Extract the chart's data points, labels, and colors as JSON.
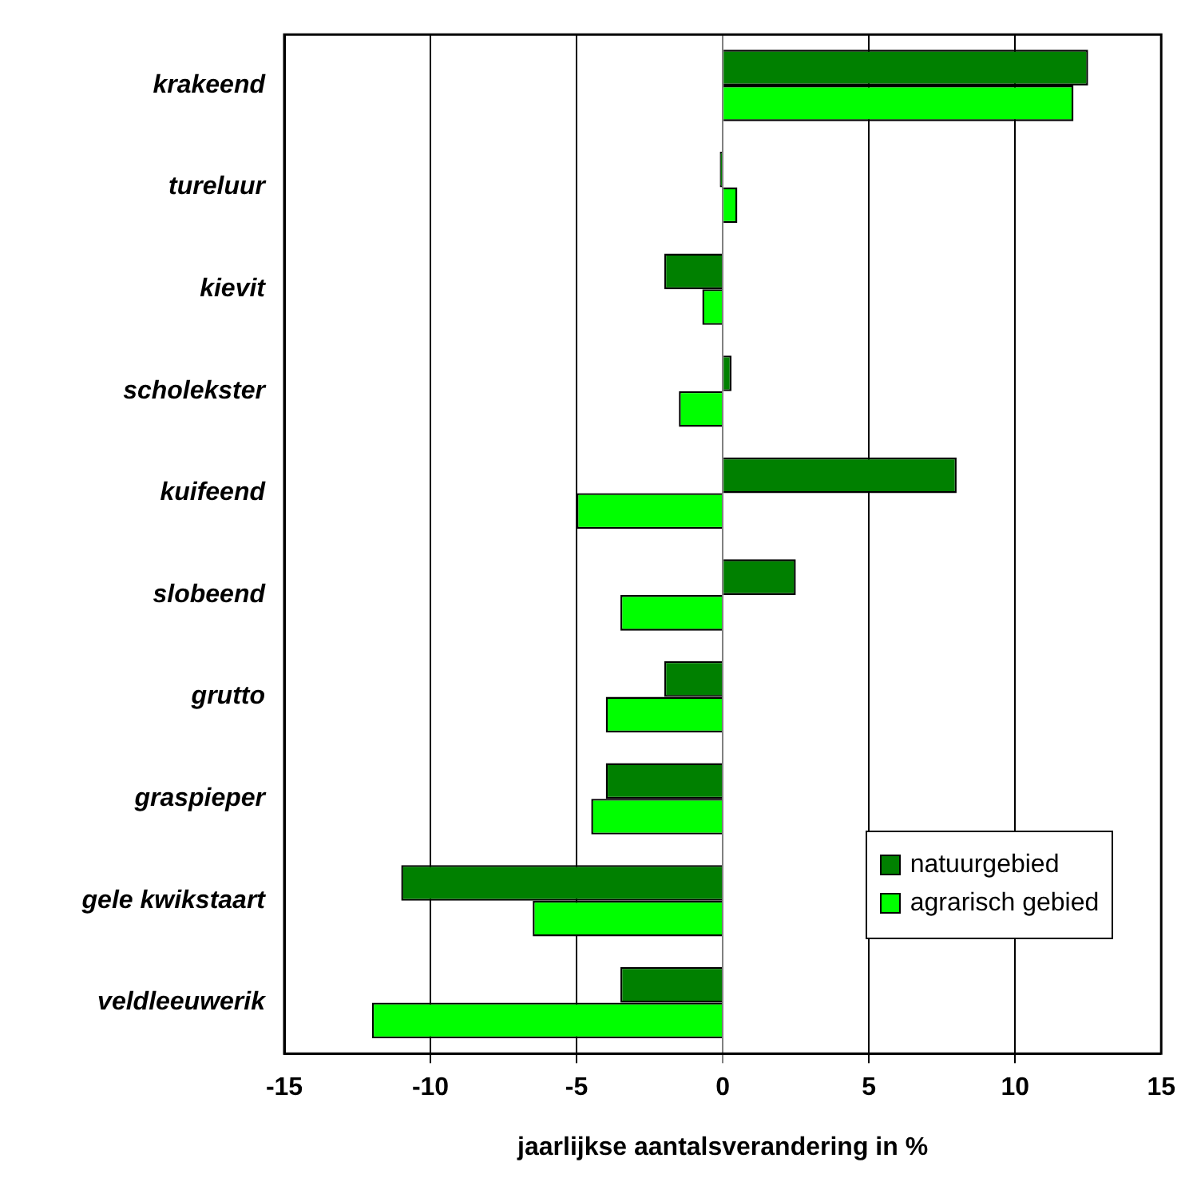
{
  "chart_data": {
    "type": "bar",
    "orientation": "horizontal",
    "xlabel": "jaarlijkse aantalsverandering in %",
    "categories": [
      "krakeend",
      "tureluur",
      "kievit",
      "scholekster",
      "kuifeend",
      "slobeend",
      "grutto",
      "graspieper",
      "gele kwikstaart",
      "veldleeuwerik"
    ],
    "series": [
      {
        "name": "natuurgebied",
        "color": "#008000",
        "values": [
          12.5,
          -0.1,
          -2.0,
          0.3,
          8.0,
          2.5,
          -2.0,
          -4.0,
          -11.0,
          -3.5
        ]
      },
      {
        "name": "agrarisch gebied",
        "color": "#00ff00",
        "values": [
          12.0,
          0.5,
          -0.7,
          -1.5,
          -5.0,
          -3.5,
          -4.0,
          -4.5,
          -6.5,
          -12.0
        ]
      }
    ],
    "xlim": [
      -15,
      15
    ],
    "xticks": [
      -15,
      -10,
      -5,
      0,
      5,
      10,
      15
    ],
    "grid": "x",
    "legend": "bottom right"
  }
}
